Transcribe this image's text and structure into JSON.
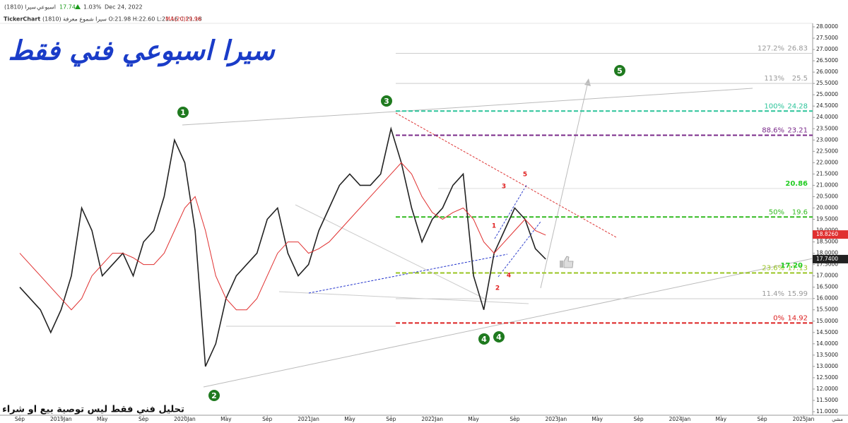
{
  "header": {
    "symbol": "سيرا (1810)",
    "period": "اسبوعي",
    "last": "17.74",
    "change": "1.03%",
    "date": "Dec 24, 2022",
    "brand": "TickerChart",
    "ohlc": "سيرا شموع معرفة (1810) O:21.98 H:22.60 L:21.16 C:21.18",
    "ma_name": "MA(20)",
    "ma_value": "19.96"
  },
  "footer": "تحليل فني فقط ليس توصية بيع او شراء",
  "corner": "مشي",
  "chart_data": {
    "type": "line",
    "title": "سيرا اسبوعي فني فقط",
    "categories": [
      "Sep",
      null,
      null,
      null,
      "2019Jan",
      null,
      null,
      null,
      "May",
      null,
      null,
      null,
      "Sep",
      null,
      null,
      null,
      "2020Jan",
      null,
      null,
      null,
      "May",
      null,
      null,
      null,
      "Sep",
      null,
      null,
      null,
      "2021Jan",
      null,
      null,
      null,
      "May",
      null,
      null,
      null,
      "Sep",
      null,
      null,
      null,
      "2022Jan",
      null,
      null,
      null,
      "May",
      null,
      null,
      null,
      "Sep",
      null,
      null,
      null,
      "2023Jan",
      null,
      null,
      null,
      "May",
      null,
      null,
      null,
      "Sep",
      null,
      null,
      null,
      "2024Jan",
      null,
      null,
      null,
      "May",
      null,
      null,
      null,
      "Sep",
      null,
      null,
      null,
      "2025Jan"
    ],
    "series": [
      {
        "name": "سيرا",
        "color": "#222222",
        "values": [
          16.5,
          16,
          15.5,
          14.5,
          15.5,
          17,
          20,
          19,
          17,
          17.5,
          18,
          17,
          18.5,
          19,
          20.5,
          23,
          22,
          19,
          13,
          14,
          16,
          17,
          17.5,
          18,
          19.5,
          20,
          18,
          17,
          17.5,
          19,
          20,
          21,
          21.5,
          21,
          21,
          21.5,
          23.5,
          22,
          20,
          18.5,
          19.5,
          20,
          21,
          21.5,
          17,
          15.5,
          18,
          19,
          20,
          19.5,
          18.2,
          17.74,
          null,
          null,
          null,
          null,
          null,
          null,
          null,
          null,
          null,
          null,
          null,
          null,
          null,
          null,
          null,
          null,
          null,
          null,
          null,
          null,
          null,
          null,
          null,
          null,
          null
        ]
      },
      {
        "name": "MA(20)",
        "color": "#e03030",
        "values": [
          18,
          17.5,
          17,
          16.5,
          16,
          15.5,
          16,
          17,
          17.5,
          18,
          18,
          17.8,
          17.5,
          17.5,
          18,
          19,
          20,
          20.5,
          19,
          17,
          16,
          15.5,
          15.5,
          16,
          17,
          18,
          18.5,
          18.5,
          18,
          18.2,
          18.5,
          19,
          19.5,
          20,
          20.5,
          21,
          21.5,
          22,
          21.5,
          20.5,
          19.8,
          19.5,
          19.8,
          20,
          19.5,
          18.5,
          18,
          18.5,
          19,
          19.5,
          19,
          18.8,
          null,
          null,
          null,
          null,
          null,
          null,
          null,
          null,
          null,
          null,
          null,
          null,
          null,
          null,
          null,
          null,
          null,
          null,
          null,
          null,
          null,
          null,
          null,
          null,
          null
        ]
      }
    ],
    "ylim": [
      11,
      28
    ],
    "yticks": [
      {
        "value": 11,
        "label": "11.0000"
      },
      {
        "value": 11.5,
        "label": "11.5000"
      },
      {
        "value": 12,
        "label": "12.0000"
      },
      {
        "value": 12.5,
        "label": "12.5000"
      },
      {
        "value": 13,
        "label": "13.0000"
      },
      {
        "value": 13.5,
        "label": "13.5000"
      },
      {
        "value": 14,
        "label": "14.0000"
      },
      {
        "value": 14.5,
        "label": "14.5000"
      },
      {
        "value": 15,
        "label": "15.0000"
      },
      {
        "value": 15.5,
        "label": "15.5000"
      },
      {
        "value": 16,
        "label": "16.0000"
      },
      {
        "value": 16.5,
        "label": "16.5000"
      },
      {
        "value": 17,
        "label": "17.0000"
      },
      {
        "value": 17.5,
        "label": "17.5000"
      },
      {
        "value": 18,
        "label": "18.0000"
      },
      {
        "value": 18.5,
        "label": "18.5000"
      },
      {
        "value": 19,
        "label": "19.0000"
      },
      {
        "value": 19.5,
        "label": "19.5000"
      },
      {
        "value": 20,
        "label": "20.0000"
      },
      {
        "value": 20.5,
        "label": "20.5000"
      },
      {
        "value": 21,
        "label": "21.0000"
      },
      {
        "value": 21.5,
        "label": "21.5000"
      },
      {
        "value": 22,
        "label": "22.0000"
      },
      {
        "value": 22.5,
        "label": "22.5000"
      },
      {
        "value": 23,
        "label": "23.0000"
      },
      {
        "value": 23.5,
        "label": "23.5000"
      },
      {
        "value": 24,
        "label": "24.0000"
      },
      {
        "value": 24.5,
        "label": "24.5000"
      },
      {
        "value": 25,
        "label": "25.0000"
      },
      {
        "value": 25.5,
        "label": "25.5000"
      },
      {
        "value": 26,
        "label": "26.0000"
      },
      {
        "value": 26.5,
        "label": "26.5000"
      },
      {
        "value": 27,
        "label": "27.0000"
      },
      {
        "value": 27.5,
        "label": "27.5000"
      },
      {
        "value": 28,
        "label": "28.0000"
      }
    ],
    "levels": [
      {
        "name": "127.2%",
        "value": 26.83,
        "color": "#cccccc",
        "dashed": false
      },
      {
        "name": "113%",
        "value": 25.5,
        "color": "#cccccc",
        "dashed": false
      },
      {
        "name": "100%",
        "value": 24.28,
        "color": "#2cc49a",
        "dashed": true
      },
      {
        "name": "88.6%",
        "value": 23.21,
        "color": "#7a2a8a",
        "dashed": true
      },
      {
        "value": 20.86,
        "color": "#dddddd",
        "dashed": false,
        "highlight": true
      },
      {
        "name": "50%",
        "value": 19.6,
        "color": "#33bb22",
        "dashed": true
      },
      {
        "name": "23.6%",
        "value": 17.13,
        "color": "#99c522",
        "dashed": true
      },
      {
        "name": "11.4%",
        "value": 15.99,
        "color": "#cccccc",
        "dashed": false
      },
      {
        "name": "0%",
        "value": 14.92,
        "color": "#dd2222",
        "dashed": true
      }
    ],
    "extra_labels": [
      {
        "value": 17.2,
        "label": "17.20"
      }
    ],
    "price_tags": [
      {
        "value": 18.826,
        "label": "18.8260",
        "color": "#e03030"
      },
      {
        "value": 17.74,
        "label": "17.7400",
        "color": "#222222"
      }
    ],
    "waves": {
      "green": [
        "1",
        "2",
        "3",
        "4",
        "4",
        "5"
      ],
      "red": [
        "1",
        "2",
        "3",
        "4",
        "5"
      ]
    }
  }
}
